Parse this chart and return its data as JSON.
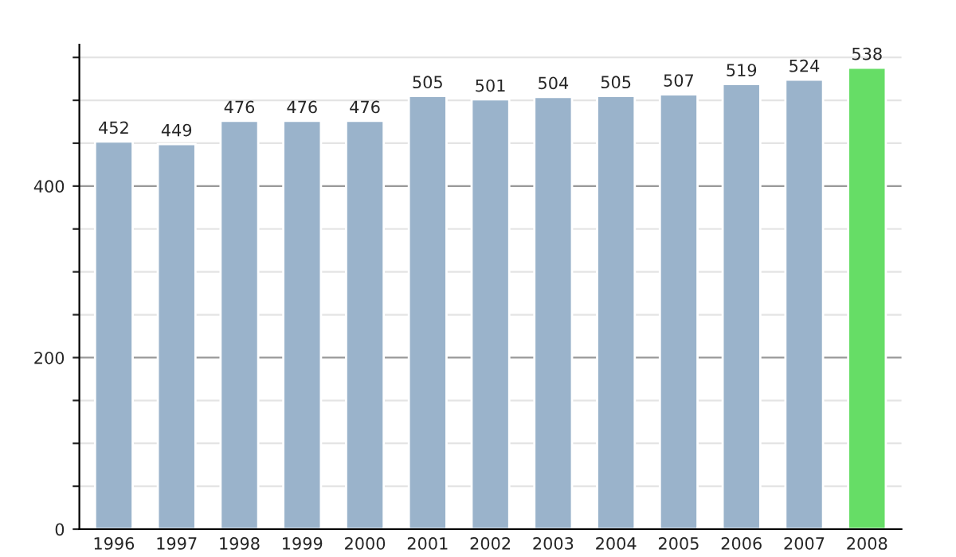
{
  "chart_data": {
    "type": "bar",
    "categories": [
      "1996",
      "1997",
      "1998",
      "1999",
      "2000",
      "2001",
      "2002",
      "2003",
      "2004",
      "2005",
      "2006",
      "2007",
      "2008"
    ],
    "values": [
      452,
      449,
      476,
      476,
      476,
      505,
      501,
      504,
      505,
      507,
      519,
      524,
      538
    ],
    "colors": [
      "#9ab3cb",
      "#9ab3cb",
      "#9ab3cb",
      "#9ab3cb",
      "#9ab3cb",
      "#9ab3cb",
      "#9ab3cb",
      "#9ab3cb",
      "#9ab3cb",
      "#9ab3cb",
      "#9ab3cb",
      "#9ab3cb",
      "#66dd66"
    ],
    "ylim": [
      0,
      565
    ],
    "yticks": [
      0,
      {
        "value": 50,
        "label": null
      },
      {
        "value": 100,
        "label": null
      },
      {
        "value": 150,
        "label": null
      },
      200,
      {
        "value": 250,
        "label": null
      },
      {
        "value": 300,
        "label": null
      },
      {
        "value": 350,
        "label": null
      },
      400,
      {
        "value": 450,
        "label": null
      },
      {
        "value": 500,
        "label": null
      },
      {
        "value": 550,
        "label": null
      }
    ],
    "grid": "y",
    "data_labels": true
  }
}
